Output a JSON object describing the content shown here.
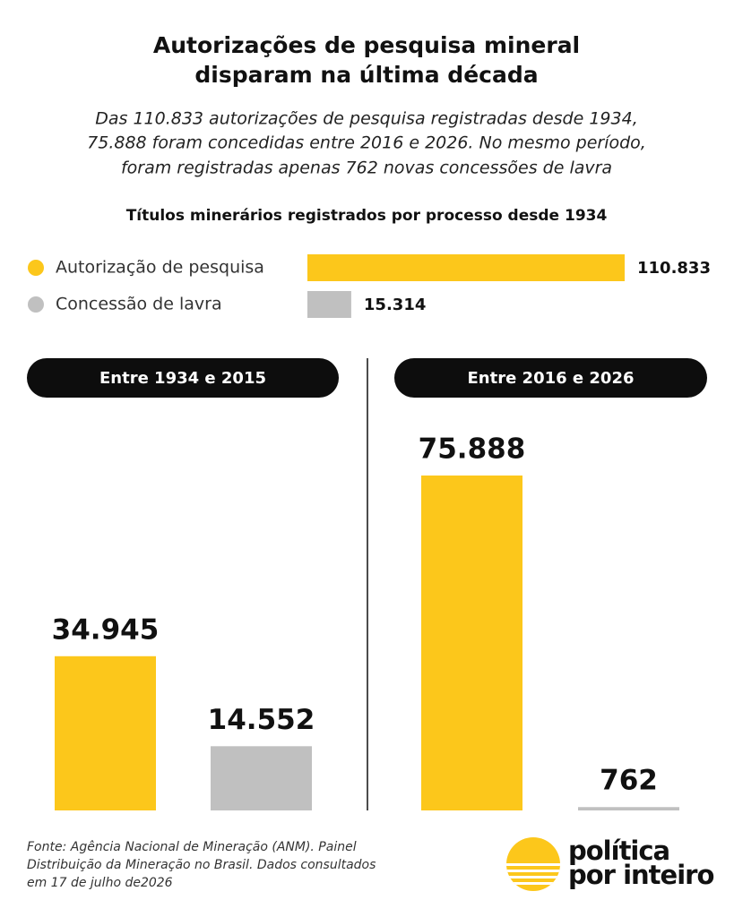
{
  "header": {
    "title": [
      "Autorizações de pesquisa mineral",
      "disparam na última década"
    ],
    "subtitle": [
      "Das 110.833 autorizações de pesquisa registradas desde 1934,",
      "75.888 foram concedidas entre 2016 e 2026. No mesmo período,",
      "foram registradas apenas 762 novas concessões de lavra"
    ]
  },
  "chart_data": [
    {
      "type": "bar",
      "orientation": "horizontal",
      "title": "Títulos minerários registrados por processo desde 1934",
      "categories": [
        "Autorização de pesquisa",
        "Concessão de lavra"
      ],
      "values": [
        110833,
        15314
      ],
      "value_labels": [
        "110.833",
        "15.314"
      ],
      "colors": [
        "#fcc71b",
        "#c0c0c0"
      ]
    },
    {
      "type": "bar",
      "title": "Entre 1934 e 2015",
      "values": [
        34945,
        14552
      ],
      "value_labels": [
        "34.945",
        "14.552"
      ],
      "colors": [
        "#fcc71b",
        "#c0c0c0"
      ]
    },
    {
      "type": "bar",
      "title": "Entre 2016 e 2026",
      "values": [
        75888,
        762
      ],
      "value_labels": [
        "75.888",
        "762"
      ],
      "colors": [
        "#fcc71b",
        "#c0c0c0"
      ]
    }
  ],
  "footer": {
    "source": [
      "Fonte: Agência Nacional de Mineração (ANM). Painel",
      "Distribuição da Mineração no Brasil. Dados consultados",
      "em 17 de julho de2026"
    ],
    "logo": [
      "política",
      "por inteiro"
    ]
  }
}
